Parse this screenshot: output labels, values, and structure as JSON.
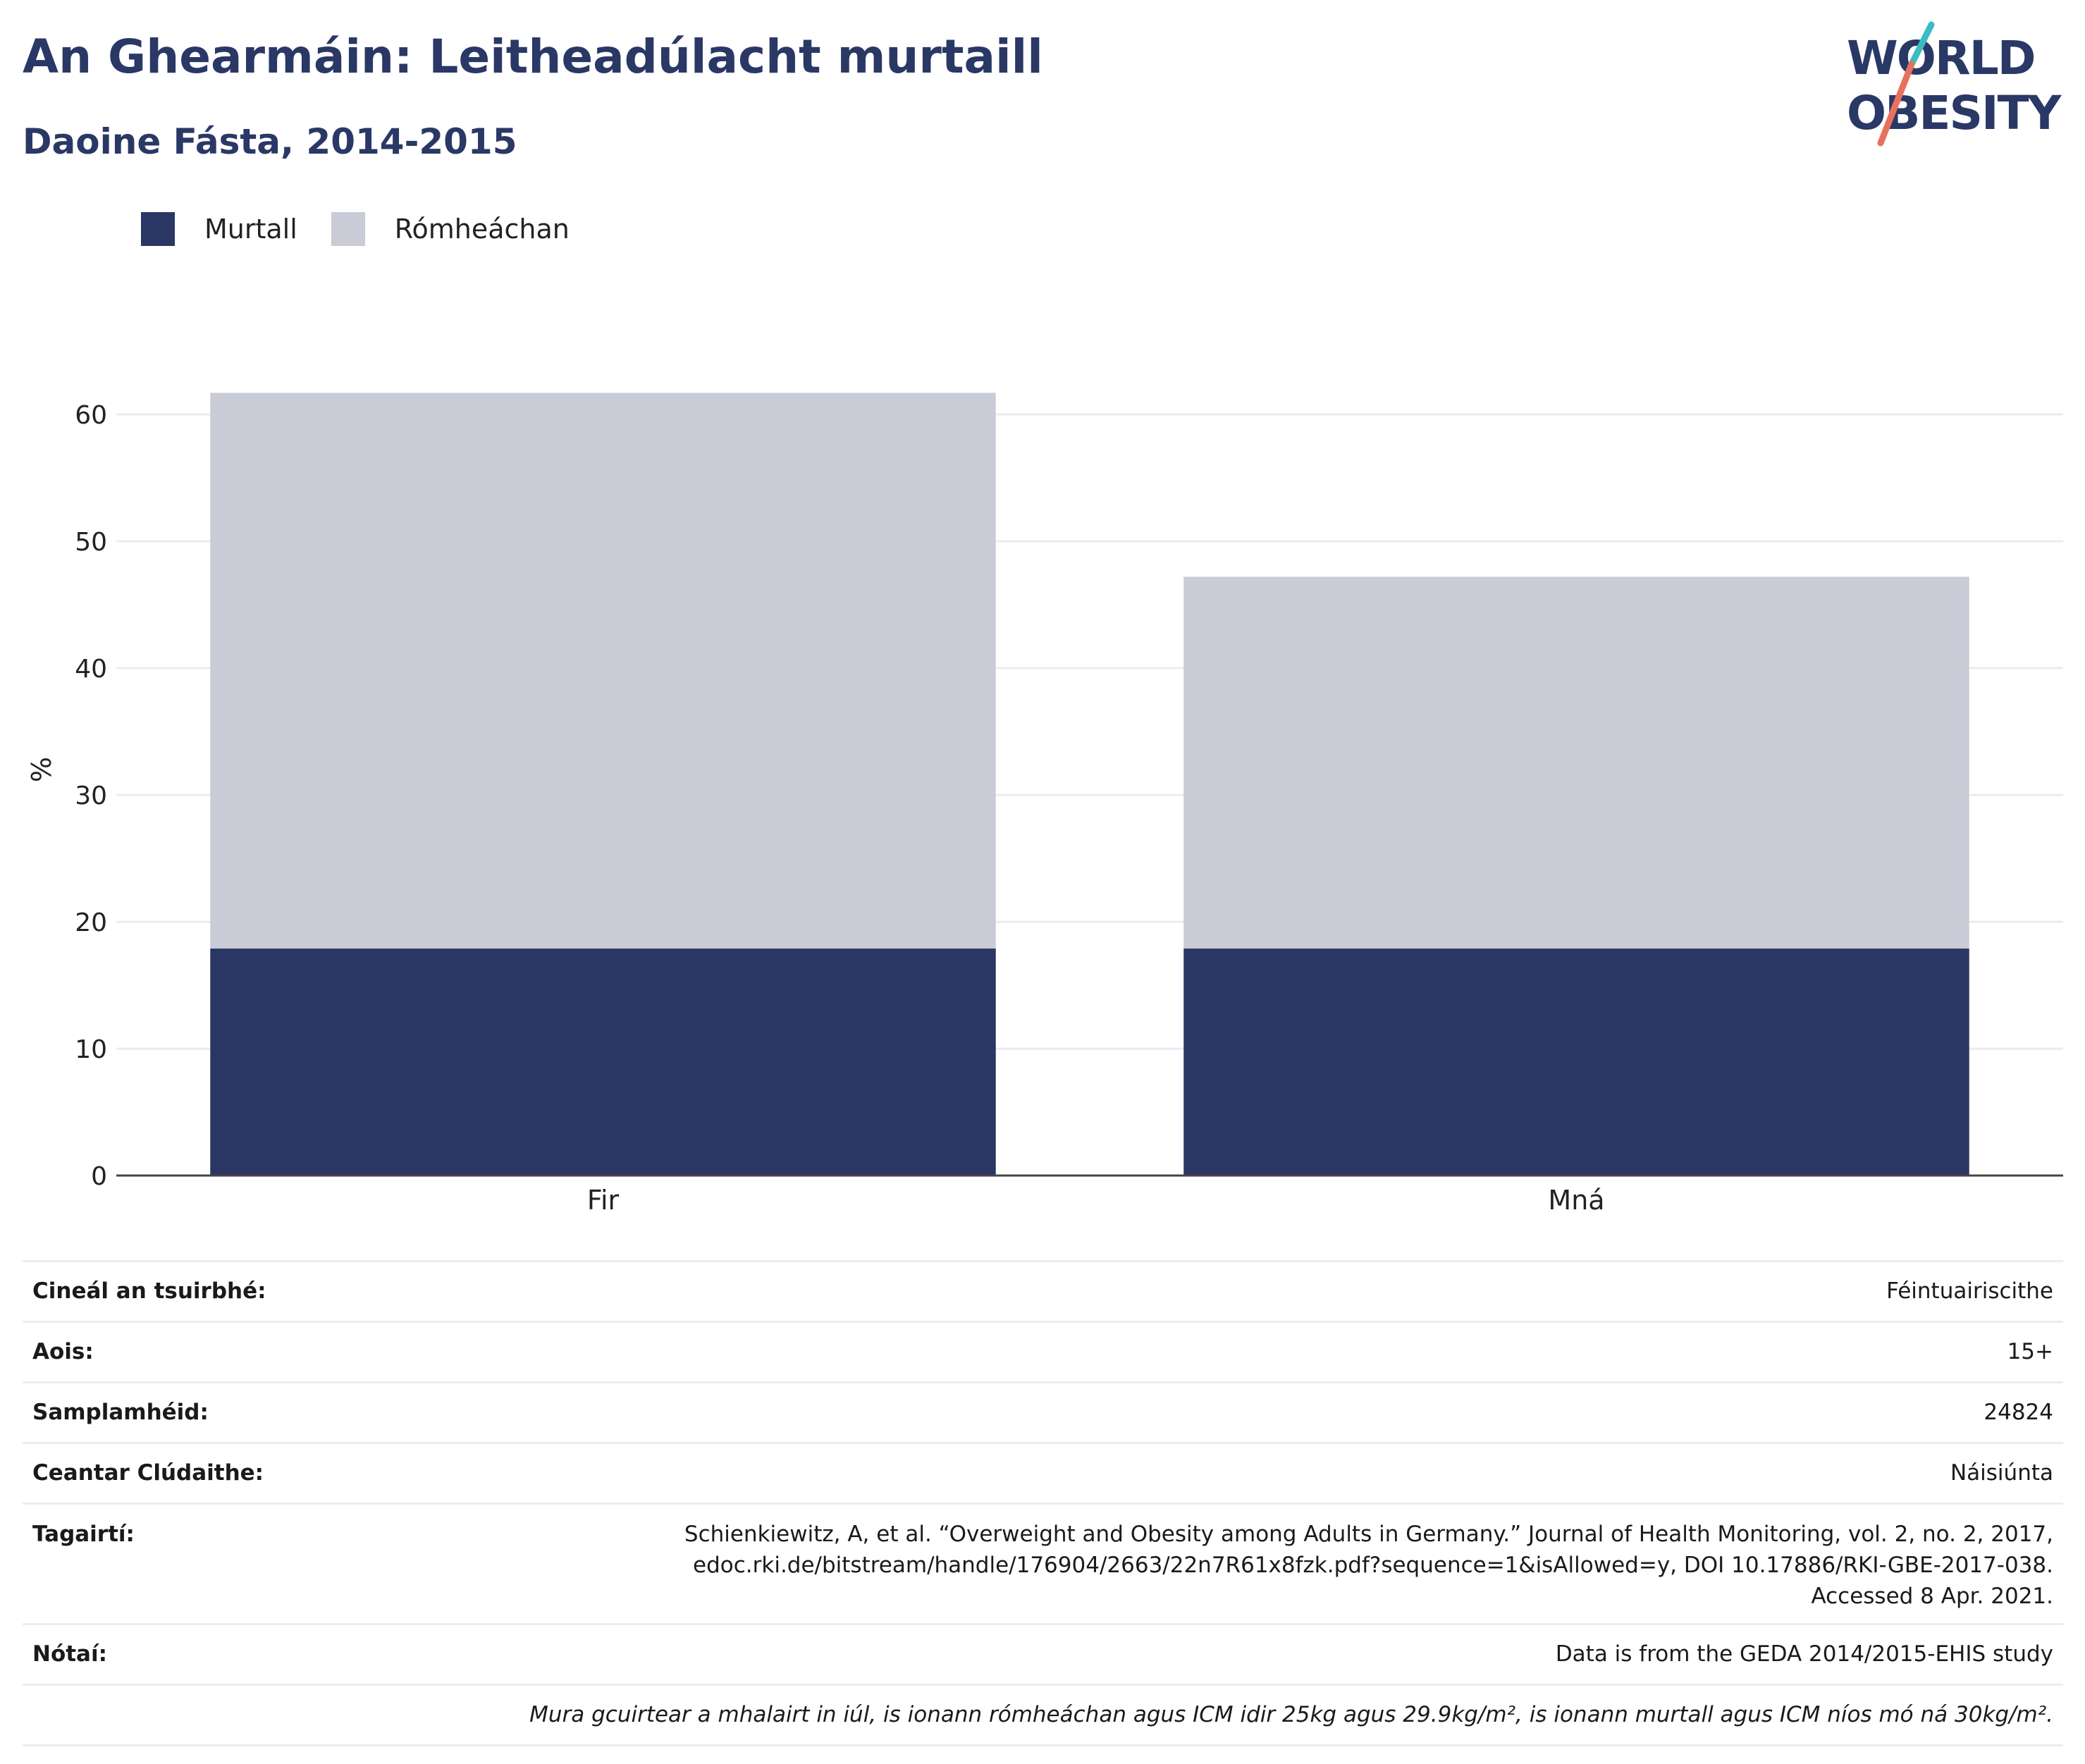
{
  "title": "An Ghearmáin: Leitheadúlacht murtaill",
  "subtitle": "Daoine Fásta, 2014-2015",
  "logo": {
    "line1": "WORLD",
    "line2": "OBESITY"
  },
  "legend": [
    {
      "label": "Murtall",
      "color": "#2a3764"
    },
    {
      "label": "Rómheáchan",
      "color": "#c9cbd7"
    }
  ],
  "chart_data": {
    "type": "bar",
    "stacked": true,
    "categories": [
      "Fir",
      "Mná"
    ],
    "series": [
      {
        "name": "Murtall",
        "values": [
          17.9,
          17.9
        ],
        "color": "#2a3764"
      },
      {
        "name": "Rómheáchan",
        "values": [
          43.8,
          29.3
        ],
        "color": "#c9cbd7"
      }
    ],
    "totals": [
      61.7,
      47.2
    ],
    "ylabel": "%",
    "ylim": [
      0,
      65
    ],
    "yticks": [
      0,
      10,
      20,
      30,
      40,
      50,
      60
    ],
    "grid": true,
    "legend_position": "top-left"
  },
  "info": [
    {
      "key": "Cineál an tsuirbhé:",
      "value": "Féintuairiscithe"
    },
    {
      "key": "Aois:",
      "value": "15+"
    },
    {
      "key": "Samplamhéid:",
      "value": "24824"
    },
    {
      "key": "Ceantar Clúdaithe:",
      "value": "Náisiúnta"
    },
    {
      "key": "Tagairtí:",
      "value_lines": [
        "Schienkiewitz, A, et al. “Overweight and Obesity among Adults in Germany.” Journal of Health Monitoring, vol. 2, no. 2, 2017,",
        "edoc.rki.de/bitstream/handle/176904/2663/22n7R61x8fzk.pdf?sequence=1&isAllowed=y, DOI 10.17886/RKI-GBE-2017-038.",
        "Accessed 8 Apr. 2021."
      ]
    },
    {
      "key": "Nótaí:",
      "value": "Data is from the GEDA 2014/2015-EHIS study"
    }
  ],
  "footnote": "Mura gcuirtear a mhalairt in iúl, is ionann rómheáchan agus ICM idir 25kg agus 29.9kg/m², is ionann murtall agus ICM níos mó ná 30kg/m²."
}
